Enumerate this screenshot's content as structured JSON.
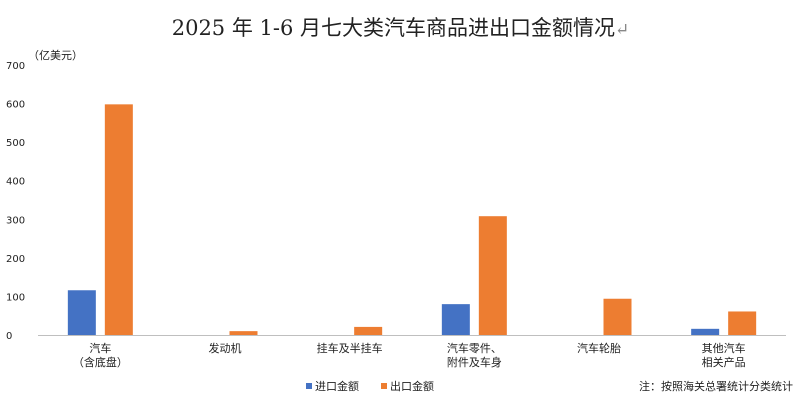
{
  "title": "2025 年 1-6 月七大类汽车商品进出口金额情况",
  "title_return_glyph": "↵",
  "unit_label": "（亿美元）",
  "note": "注：按照海关总署统计分类统计",
  "colors": {
    "import": "#4472C4",
    "export": "#ED7D31",
    "axis": "#BFBFBF"
  },
  "chart_data": {
    "type": "bar",
    "categories": [
      [
        "汽车",
        "（含底盘）"
      ],
      [
        "发动机"
      ],
      [
        "挂车及半挂车"
      ],
      [
        "汽车零件、",
        "附件及车身"
      ],
      [
        "汽车轮胎"
      ],
      [
        "其他汽车",
        "相关产品"
      ]
    ],
    "series": [
      {
        "name": "进口金额",
        "values": [
          116,
          0,
          0,
          80,
          0,
          16
        ]
      },
      {
        "name": "出口金额",
        "values": [
          598,
          10,
          21,
          308,
          94,
          61
        ]
      }
    ],
    "ylim": [
      0,
      700
    ],
    "yticks": [
      0,
      100,
      200,
      300,
      400,
      500,
      600,
      700
    ],
    "grid": false,
    "legend_position": "bottom"
  }
}
